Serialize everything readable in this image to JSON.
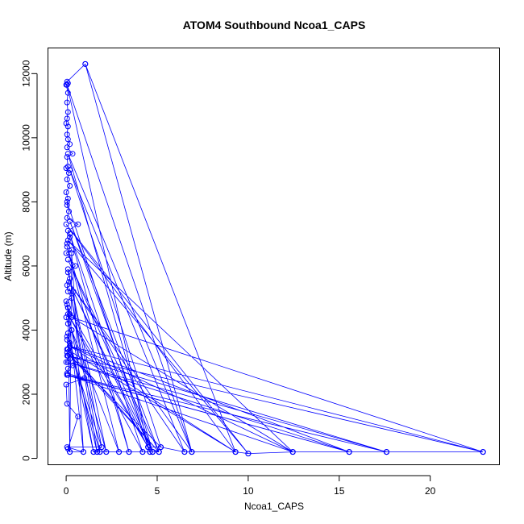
{
  "chart_data": {
    "type": "line",
    "title": "ATOM4 Southbound Ncoa1_CAPS",
    "xlabel": "Ncoa1_CAPS",
    "ylabel": "Altitude (m)",
    "xlim": [
      -1,
      23.8
    ],
    "ylim": [
      -200,
      12800
    ],
    "xticks": [
      0,
      5,
      10,
      15,
      20
    ],
    "yticks": [
      0,
      2000,
      4000,
      6000,
      8000,
      10000,
      12000
    ],
    "grid": false,
    "legend": "none",
    "color": "#0000ff",
    "marker": "open-circle",
    "points": [
      [
        1.05,
        12300
      ],
      [
        0.05,
        11750
      ],
      [
        0.1,
        11700
      ],
      [
        0.0,
        11650
      ],
      [
        0.1,
        11400
      ],
      [
        0.05,
        11100
      ],
      [
        0.1,
        10800
      ],
      [
        0.05,
        10600
      ],
      [
        0.0,
        10450
      ],
      [
        0.1,
        10350
      ],
      [
        0.05,
        10100
      ],
      [
        0.1,
        9950
      ],
      [
        0.2,
        9800
      ],
      [
        0.05,
        9700
      ],
      [
        0.35,
        9500
      ],
      [
        0.05,
        9400
      ],
      [
        0.1,
        9100
      ],
      [
        0.0,
        9050
      ],
      [
        0.15,
        8900
      ],
      [
        0.05,
        8700
      ],
      [
        0.2,
        8500
      ],
      [
        0.0,
        8300
      ],
      [
        0.1,
        8100
      ],
      [
        0.05,
        7900
      ],
      [
        0.15,
        7700
      ],
      [
        0.05,
        7500
      ],
      [
        0.65,
        7300
      ],
      [
        0.1,
        7100
      ],
      [
        0.2,
        6900
      ],
      [
        0.05,
        6700
      ],
      [
        0.3,
        6500
      ],
      [
        0.0,
        6400
      ],
      [
        0.5,
        6000
      ],
      [
        0.1,
        5800
      ],
      [
        0.2,
        5600
      ],
      [
        0.05,
        5400
      ],
      [
        0.1,
        5200
      ],
      [
        0.3,
        5000
      ],
      [
        0.0,
        4900
      ],
      [
        0.1,
        4700
      ],
      [
        0.2,
        4500
      ],
      [
        0.0,
        4400
      ],
      [
        0.1,
        4200
      ],
      [
        0.3,
        4000
      ],
      [
        0.05,
        3800
      ],
      [
        0.2,
        3600
      ],
      [
        0.1,
        3400
      ],
      [
        0.05,
        3200
      ],
      [
        0.2,
        3100
      ],
      [
        0.0,
        3000
      ],
      [
        0.35,
        2900
      ],
      [
        0.1,
        2800
      ],
      [
        0.05,
        2650
      ],
      [
        1.0,
        2500
      ],
      [
        0.0,
        2300
      ],
      [
        0.05,
        1700
      ],
      [
        0.65,
        1300
      ],
      [
        0.1,
        300
      ],
      [
        0.2,
        200
      ],
      [
        0.95,
        200
      ],
      [
        0.05,
        350
      ],
      [
        1.95,
        350
      ],
      [
        1.5,
        200
      ],
      [
        1.7,
        200
      ],
      [
        1.85,
        200
      ],
      [
        2.2,
        200
      ],
      [
        2.9,
        200
      ],
      [
        3.45,
        200
      ],
      [
        4.2,
        200
      ],
      [
        4.6,
        200
      ],
      [
        4.75,
        200
      ],
      [
        5.1,
        200
      ],
      [
        4.5,
        350
      ],
      [
        5.2,
        350
      ],
      [
        6.5,
        200
      ],
      [
        6.9,
        200
      ],
      [
        9.3,
        200
      ],
      [
        10.0,
        150
      ],
      [
        12.45,
        200
      ],
      [
        15.55,
        200
      ],
      [
        17.6,
        200
      ],
      [
        22.9,
        200
      ],
      [
        17.6,
        200
      ],
      [
        0.1,
        2600
      ],
      [
        15.55,
        200
      ],
      [
        0.2,
        3500
      ],
      [
        22.9,
        200
      ],
      [
        0.3,
        4400
      ],
      [
        12.45,
        200
      ],
      [
        0.1,
        6800
      ],
      [
        10.0,
        150
      ],
      [
        0.0,
        7300
      ],
      [
        9.3,
        200
      ],
      [
        1.05,
        12300
      ],
      [
        6.9,
        200
      ],
      [
        0.15,
        5500
      ],
      [
        6.5,
        200
      ],
      [
        0.2,
        9000
      ],
      [
        5.2,
        350
      ],
      [
        0.05,
        3300
      ],
      [
        5.1,
        200
      ],
      [
        0.1,
        6200
      ],
      [
        4.75,
        200
      ],
      [
        0.4,
        5200
      ],
      [
        4.6,
        200
      ],
      [
        0.05,
        8000
      ],
      [
        4.5,
        350
      ],
      [
        0.1,
        4500
      ],
      [
        4.2,
        200
      ],
      [
        0.2,
        7000
      ],
      [
        3.45,
        200
      ],
      [
        0.05,
        6600
      ],
      [
        2.9,
        200
      ],
      [
        0.3,
        4000
      ],
      [
        2.2,
        200
      ],
      [
        0.1,
        5900
      ],
      [
        1.95,
        350
      ],
      [
        0.05,
        3700
      ],
      [
        1.85,
        200
      ],
      [
        0.2,
        5300
      ],
      [
        1.7,
        200
      ],
      [
        0.1,
        3900
      ],
      [
        1.5,
        200
      ],
      [
        0.05,
        4800
      ],
      [
        0.95,
        200
      ],
      [
        0.3,
        6400
      ],
      [
        0.2,
        200
      ],
      [
        0.1,
        4700
      ],
      [
        4.5,
        350
      ],
      [
        0.05,
        11650
      ],
      [
        6.9,
        200
      ],
      [
        0.1,
        9500
      ],
      [
        4.75,
        200
      ],
      [
        0.2,
        7400
      ],
      [
        5.1,
        200
      ],
      [
        0.05,
        3400
      ],
      [
        9.3,
        200
      ],
      [
        0.2,
        3500
      ],
      [
        12.45,
        200
      ],
      [
        0.05,
        2600
      ],
      [
        15.55,
        200
      ],
      [
        0.1,
        3000
      ],
      [
        17.6,
        200
      ],
      [
        0.1,
        3200
      ],
      [
        22.9,
        200
      ]
    ]
  }
}
